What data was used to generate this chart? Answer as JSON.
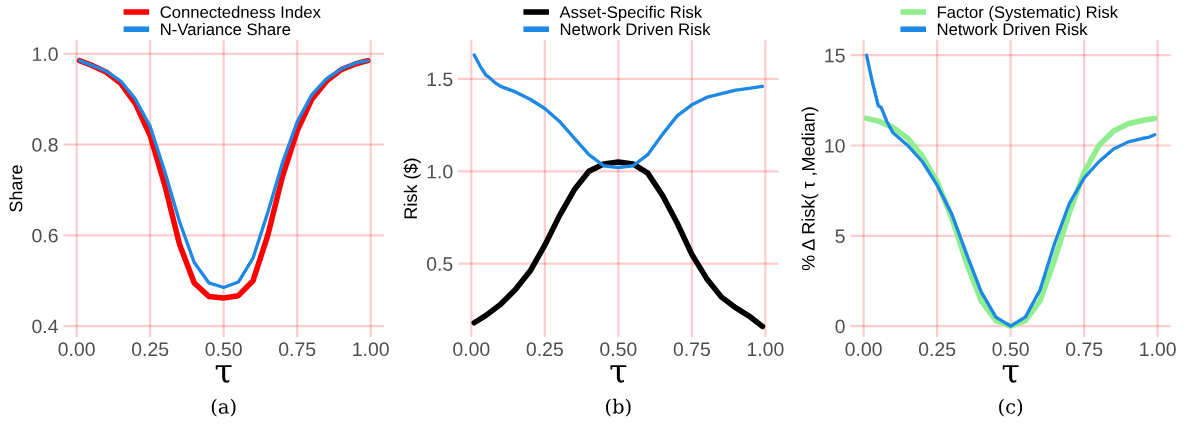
{
  "chart_data": [
    {
      "type": "line",
      "xlabel": "τ",
      "ylabel": "Share",
      "annotations": [
        "(a)"
      ],
      "legend": "top",
      "grid": true,
      "line_style": "solid",
      "xlim": [
        -0.045,
        1.045
      ],
      "ylim": [
        0.376,
        1.03
      ],
      "xticks": [
        {
          "value": 0,
          "label": "0.00"
        },
        {
          "value": 0.25,
          "label": "0.25"
        },
        {
          "value": 0.5,
          "label": "0.50"
        },
        {
          "value": 0.75,
          "label": "0.75"
        },
        {
          "value": 1,
          "label": "1.00"
        }
      ],
      "yticks": [
        0.4,
        0.6,
        0.8,
        {
          "value": 1.0,
          "label": "1.0"
        }
      ],
      "x": [
        0.01,
        0.05,
        0.1,
        0.15,
        0.2,
        0.25,
        0.3,
        0.35,
        0.4,
        0.45,
        0.5,
        0.55,
        0.6,
        0.65,
        0.7,
        0.75,
        0.8,
        0.85,
        0.9,
        0.95,
        0.99
      ],
      "series": [
        {
          "name": "Connectedness Index",
          "color": "#ff0000",
          "values": [
            0.985,
            0.975,
            0.96,
            0.935,
            0.89,
            0.82,
            0.71,
            0.58,
            0.495,
            0.465,
            0.462,
            0.467,
            0.5,
            0.6,
            0.73,
            0.83,
            0.9,
            0.94,
            0.965,
            0.978,
            0.985
          ]
        },
        {
          "name": "N-Variance Share",
          "color": "#1e88e5",
          "values": [
            0.985,
            0.975,
            0.962,
            0.94,
            0.9,
            0.84,
            0.74,
            0.63,
            0.54,
            0.495,
            0.485,
            0.497,
            0.55,
            0.65,
            0.76,
            0.85,
            0.91,
            0.945,
            0.967,
            0.98,
            0.985
          ]
        }
      ]
    },
    {
      "type": "line",
      "xlabel": "τ",
      "ylabel": "Risk ($)",
      "annotations": [
        "(b)"
      ],
      "legend": "top",
      "grid": true,
      "line_style": "solid",
      "xlim": [
        -0.045,
        1.045
      ],
      "ylim": [
        0.103,
        1.71
      ],
      "xticks": [
        {
          "value": 0,
          "label": "0.00"
        },
        {
          "value": 0.25,
          "label": "0.25"
        },
        {
          "value": 0.5,
          "label": "0.50"
        },
        {
          "value": 0.75,
          "label": "0.75"
        },
        {
          "value": 1,
          "label": "1.00"
        }
      ],
      "yticks": [
        0.5,
        {
          "value": 1.0,
          "label": "1.0"
        },
        1.5
      ],
      "series": [
        {
          "name": "Asset-Specific Risk",
          "color": "#000000",
          "x": [
            0.01,
            0.05,
            0.1,
            0.15,
            0.2,
            0.25,
            0.3,
            0.35,
            0.4,
            0.45,
            0.5,
            0.55,
            0.6,
            0.65,
            0.7,
            0.75,
            0.8,
            0.85,
            0.9,
            0.95,
            0.99
          ],
          "values": [
            0.18,
            0.22,
            0.28,
            0.36,
            0.46,
            0.6,
            0.76,
            0.9,
            1.0,
            1.04,
            1.05,
            1.04,
            0.99,
            0.87,
            0.72,
            0.55,
            0.42,
            0.32,
            0.26,
            0.21,
            0.16
          ]
        },
        {
          "name": "Network Driven Risk",
          "color": "#1e88e5",
          "x": [
            0.01,
            0.03,
            0.05,
            0.06,
            0.08,
            0.1,
            0.15,
            0.2,
            0.25,
            0.3,
            0.35,
            0.4,
            0.45,
            0.5,
            0.55,
            0.6,
            0.65,
            0.7,
            0.75,
            0.8,
            0.85,
            0.9,
            0.95,
            0.99
          ],
          "values": [
            1.63,
            1.57,
            1.52,
            1.51,
            1.48,
            1.46,
            1.43,
            1.39,
            1.34,
            1.27,
            1.18,
            1.09,
            1.03,
            1.02,
            1.03,
            1.09,
            1.2,
            1.3,
            1.36,
            1.4,
            1.42,
            1.44,
            1.45,
            1.46
          ]
        }
      ]
    },
    {
      "type": "line",
      "xlabel": "τ",
      "ylabel": "% Δ Risk( τ ,Median)",
      "annotations": [
        "(c)"
      ],
      "legend": "top",
      "grid": true,
      "line_style": "solid",
      "xlim": [
        -0.045,
        1.045
      ],
      "ylim": [
        -0.6,
        15.83
      ],
      "xticks": [
        {
          "value": 0,
          "label": "0.00"
        },
        {
          "value": 0.25,
          "label": "0.25"
        },
        {
          "value": 0.5,
          "label": "0.50"
        },
        {
          "value": 0.75,
          "label": "0.75"
        },
        {
          "value": 1,
          "label": "1.00"
        }
      ],
      "yticks": [
        0,
        5,
        10,
        15
      ],
      "series": [
        {
          "name": "Factor (Systematic) Risk",
          "color": "#90ee90",
          "x": [
            0.01,
            0.05,
            0.1,
            0.15,
            0.2,
            0.25,
            0.3,
            0.35,
            0.4,
            0.45,
            0.5,
            0.55,
            0.6,
            0.65,
            0.7,
            0.75,
            0.8,
            0.85,
            0.9,
            0.95,
            0.99
          ],
          "values": [
            11.5,
            11.35,
            11.0,
            10.4,
            9.4,
            8.0,
            6.0,
            3.5,
            1.4,
            0.3,
            0,
            0.3,
            1.4,
            3.7,
            6.3,
            8.5,
            10.0,
            10.8,
            11.2,
            11.4,
            11.5
          ]
        },
        {
          "name": "Network Driven Risk",
          "color": "#1e88e5",
          "x": [
            0.01,
            0.03,
            0.05,
            0.06,
            0.08,
            0.1,
            0.15,
            0.2,
            0.25,
            0.3,
            0.35,
            0.4,
            0.45,
            0.5,
            0.55,
            0.6,
            0.65,
            0.7,
            0.75,
            0.8,
            0.85,
            0.9,
            0.95,
            0.97,
            0.99
          ],
          "values": [
            15.0,
            13.5,
            12.2,
            12.1,
            11.3,
            10.7,
            10.0,
            9.1,
            7.8,
            6.2,
            4.0,
            1.9,
            0.5,
            0,
            0.5,
            2.0,
            4.6,
            6.8,
            8.2,
            9.1,
            9.8,
            10.2,
            10.4,
            10.45,
            10.6
          ]
        }
      ]
    }
  ]
}
